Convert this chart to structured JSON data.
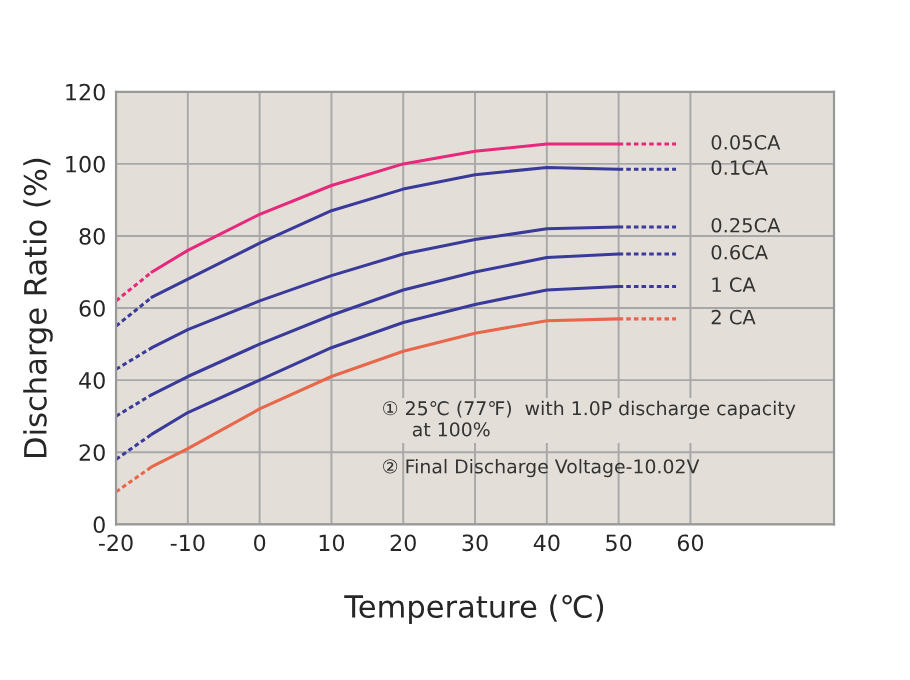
{
  "chart_data": {
    "type": "line",
    "xlabel": "Temperature (℃)",
    "ylabel": "Discharge Ratio (%)",
    "xlim": [
      -20,
      80
    ],
    "xticks": [
      -20,
      -10,
      0,
      10,
      20,
      30,
      40,
      50,
      60
    ],
    "ylim": [
      0,
      120
    ],
    "yticks": [
      0,
      20,
      40,
      60,
      80,
      100,
      120
    ],
    "grid": true,
    "line_style": "solid",
    "series": [
      {
        "name": "0.05CA",
        "color": "#e8287a",
        "x": [
          -15,
          -10,
          0,
          10,
          20,
          30,
          40,
          50
        ],
        "values": [
          70,
          76,
          86,
          94,
          100,
          103.5,
          105.5,
          105.5
        ]
      },
      {
        "name": "0.1CA",
        "color": "#3a3a9a",
        "x": [
          -15,
          -10,
          0,
          10,
          20,
          30,
          40,
          50
        ],
        "values": [
          63,
          68,
          78,
          87,
          93,
          97,
          99,
          98.5
        ]
      },
      {
        "name": "0.25CA",
        "color": "#3a3a9a",
        "x": [
          -15,
          -10,
          0,
          10,
          20,
          30,
          40,
          50
        ],
        "values": [
          49,
          54,
          62,
          69,
          75,
          79,
          82,
          82.5
        ]
      },
      {
        "name": "0.6CA",
        "color": "#3a3a9a",
        "x": [
          -15,
          -10,
          0,
          10,
          20,
          30,
          40,
          50
        ],
        "values": [
          36,
          41,
          50,
          58,
          65,
          70,
          74,
          75
        ]
      },
      {
        "name": "1 CA",
        "color": "#3a3a9a",
        "x": [
          -15,
          -10,
          0,
          10,
          20,
          30,
          40,
          50
        ],
        "values": [
          25,
          31,
          40,
          49,
          56,
          61,
          65,
          66
        ]
      },
      {
        "name": "2 CA",
        "color": "#e8674a",
        "x": [
          -15,
          -10,
          0,
          10,
          20,
          30,
          40,
          50
        ],
        "values": [
          16,
          21,
          32,
          41,
          48,
          53,
          56.5,
          57
        ]
      },
      {
        "color": "#e8287a",
        "line_style": "dotted",
        "x": [
          -20,
          -15
        ],
        "values": [
          62,
          70
        ]
      },
      {
        "color": "#e8287a",
        "line_style": "dotted",
        "x": [
          50,
          58
        ],
        "values": [
          105.5,
          105.5
        ]
      },
      {
        "color": "#3a3a9a",
        "line_style": "dotted",
        "x": [
          -20,
          -15
        ],
        "values": [
          55,
          63
        ]
      },
      {
        "color": "#3a3a9a",
        "line_style": "dotted",
        "x": [
          50,
          58
        ],
        "values": [
          98.5,
          98.5
        ]
      },
      {
        "color": "#3a3a9a",
        "line_style": "dotted",
        "x": [
          -20,
          -15
        ],
        "values": [
          43,
          49
        ]
      },
      {
        "color": "#3a3a9a",
        "line_style": "dotted",
        "x": [
          50,
          58
        ],
        "values": [
          82.5,
          82.5
        ]
      },
      {
        "color": "#3a3a9a",
        "line_style": "dotted",
        "x": [
          -20,
          -15
        ],
        "values": [
          30,
          36
        ]
      },
      {
        "color": "#3a3a9a",
        "line_style": "dotted",
        "x": [
          50,
          58
        ],
        "values": [
          75,
          75
        ]
      },
      {
        "color": "#3a3a9a",
        "line_style": "dotted",
        "x": [
          -20,
          -15
        ],
        "values": [
          18,
          25
        ]
      },
      {
        "color": "#3a3a9a",
        "line_style": "dotted",
        "x": [
          50,
          58
        ],
        "values": [
          66,
          66
        ]
      },
      {
        "color": "#e8674a",
        "line_style": "dotted",
        "x": [
          -20,
          -15
        ],
        "values": [
          9,
          16
        ]
      },
      {
        "color": "#e8674a",
        "line_style": "dotted",
        "x": [
          50,
          58
        ],
        "values": [
          57,
          57
        ]
      }
    ],
    "annotations": [
      "① 25℃ (77℉)  with 1.0P discharge capacity\n     at 100%",
      "② Final Discharge Voltage-10.02V"
    ]
  }
}
